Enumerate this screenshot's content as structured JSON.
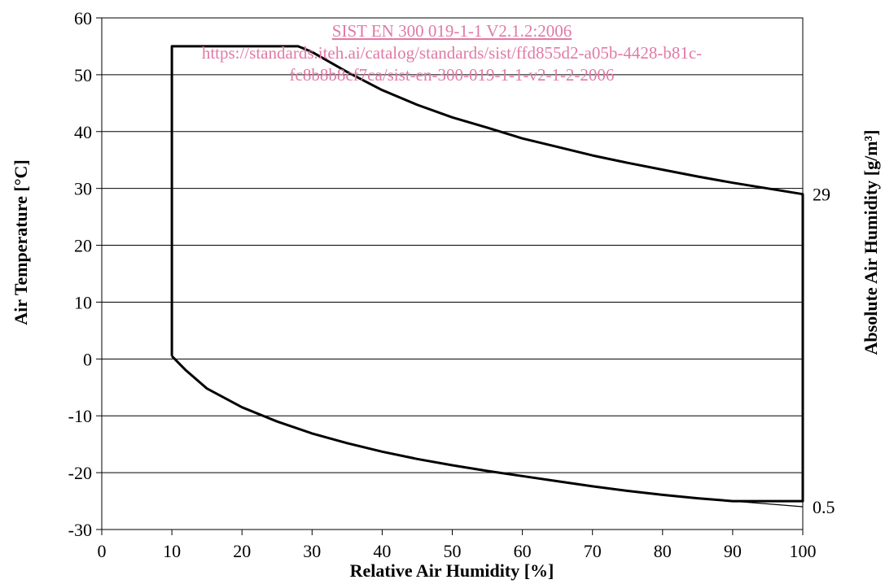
{
  "chart_data": {
    "type": "line",
    "title": "",
    "xlabel": "Relative Air Humidity [%]",
    "ylabel": "Air Temperature [°C]",
    "y2label": "Absolute Air Humidity [g/m³]",
    "xlim": [
      0,
      100
    ],
    "ylim": [
      -30,
      60
    ],
    "xticks": [
      0,
      10,
      20,
      30,
      40,
      50,
      60,
      70,
      80,
      90,
      100
    ],
    "yticks": [
      -30,
      -20,
      -10,
      0,
      10,
      20,
      30,
      40,
      50,
      60
    ],
    "grid": "horizontal",
    "legend": "none",
    "line_color": "#000000",
    "series": [
      {
        "name": "",
        "points": [
          [
            10,
            0.5
          ],
          [
            10,
            55
          ],
          [
            28,
            55
          ],
          [
            30,
            54
          ],
          [
            35,
            50.5
          ],
          [
            40,
            47.3
          ],
          [
            45,
            44.7
          ],
          [
            50,
            42.5
          ],
          [
            55,
            40.7
          ],
          [
            60,
            38.8
          ],
          [
            65,
            37.3
          ],
          [
            70,
            35.8
          ],
          [
            75,
            34.5
          ],
          [
            80,
            33.3
          ],
          [
            85,
            32.1
          ],
          [
            90,
            31
          ],
          [
            95,
            30
          ],
          [
            100,
            29
          ],
          [
            100,
            -25
          ],
          [
            90,
            -25
          ],
          [
            85,
            -24.5
          ],
          [
            80,
            -23.9
          ],
          [
            75,
            -23.2
          ],
          [
            70,
            -22.4
          ],
          [
            65,
            -21.5
          ],
          [
            60,
            -20.6
          ],
          [
            55,
            -19.7
          ],
          [
            50,
            -18.7
          ],
          [
            45,
            -17.6
          ],
          [
            40,
            -16.3
          ],
          [
            35,
            -14.8
          ],
          [
            30,
            -13.1
          ],
          [
            25,
            -11
          ],
          [
            20,
            -8.5
          ],
          [
            15,
            -5.2
          ],
          [
            12,
            -2
          ],
          [
            10,
            0.5
          ]
        ]
      },
      {
        "name": "",
        "points": [
          [
            90,
            -25
          ],
          [
            95,
            -25.5
          ],
          [
            100,
            -26
          ]
        ]
      }
    ],
    "right_annotations": [
      {
        "value": 29,
        "label": "29"
      },
      {
        "value": -26,
        "label": "0.5"
      }
    ]
  },
  "watermark": {
    "line1": "SIST EN 300 019-1-1 V2.1.2:2006",
    "line2": "https://standards.iteh.ai/catalog/standards/sist/ffd855d2-a05b-4428-b81c-",
    "line3": "fc8b8b8cf7ca/sist-en-300-019-1-1-v2-1-2-2006",
    "color": "#e07aa6"
  }
}
